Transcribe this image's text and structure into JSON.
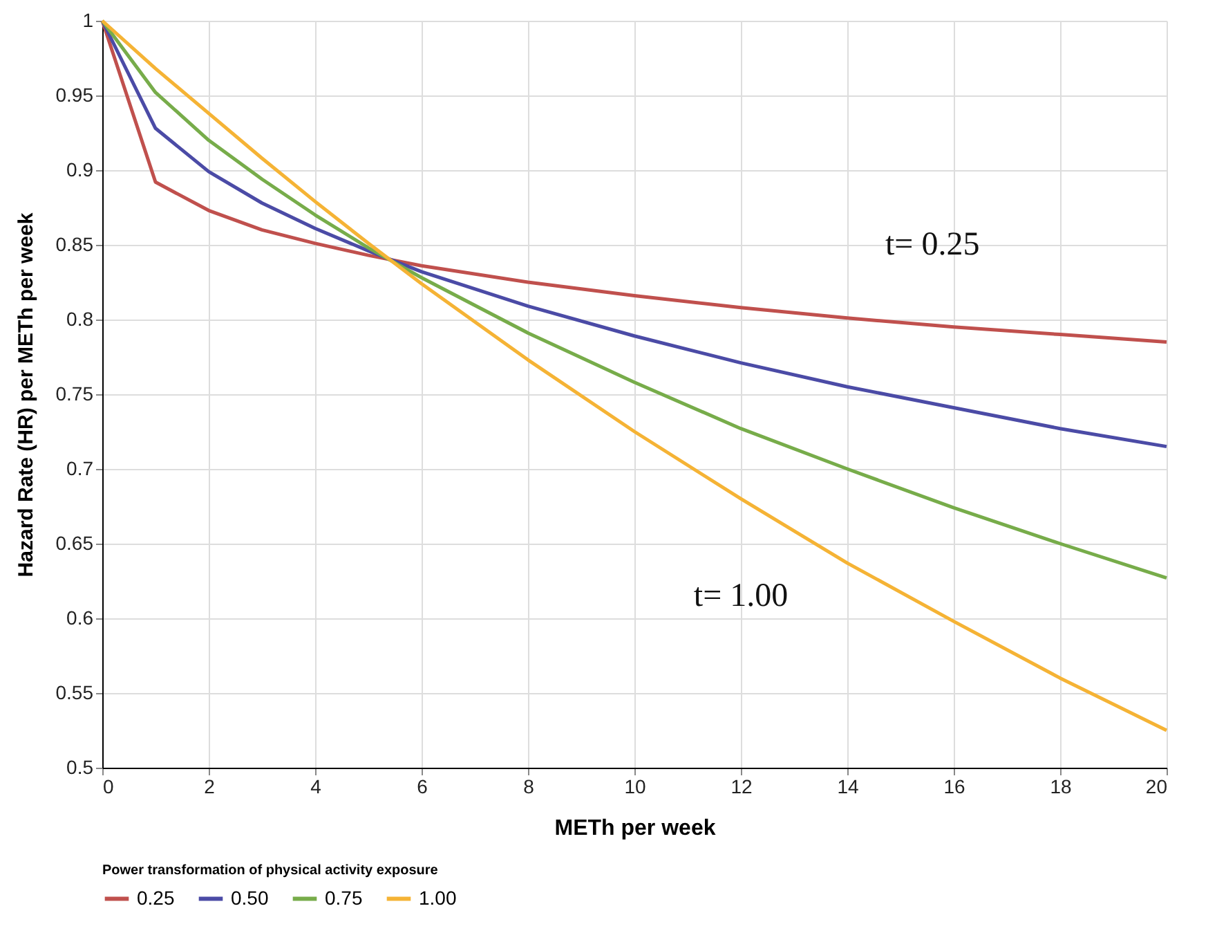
{
  "chart_data": {
    "type": "line",
    "xlabel": "METh per week",
    "ylabel": "Hazard Rate (HR) per METh per week",
    "legend_title": "Power transformation of physical activity exposure",
    "x": [
      0,
      1,
      2,
      3,
      4,
      5,
      6,
      8,
      10,
      12,
      14,
      16,
      18,
      20
    ],
    "series": [
      {
        "name": "0.25",
        "color": "#c0504d",
        "values": [
          1,
          0.892,
          0.873,
          0.86,
          0.851,
          0.843,
          0.836,
          0.825,
          0.816,
          0.808,
          0.801,
          0.795,
          0.79,
          0.785
        ]
      },
      {
        "name": "0.50",
        "color": "#4b4ba6",
        "values": [
          1,
          0.928,
          0.899,
          0.878,
          0.861,
          0.846,
          0.832,
          0.809,
          0.789,
          0.771,
          0.755,
          0.741,
          0.727,
          0.715
        ]
      },
      {
        "name": "0.75",
        "color": "#77ac4a",
        "values": [
          1,
          0.952,
          0.92,
          0.894,
          0.87,
          0.848,
          0.828,
          0.791,
          0.758,
          0.727,
          0.7,
          0.674,
          0.65,
          0.627
        ]
      },
      {
        "name": "1.00",
        "color": "#f5b335",
        "values": [
          1,
          0.968,
          0.938,
          0.908,
          0.879,
          0.851,
          0.824,
          0.773,
          0.725,
          0.68,
          0.637,
          0.598,
          0.56,
          0.525
        ]
      }
    ],
    "xlim": [
      0,
      20
    ],
    "xticks": [
      0,
      2,
      4,
      6,
      8,
      10,
      12,
      14,
      16,
      18,
      20
    ],
    "ylim": [
      0.5,
      1
    ],
    "yticks": [
      0.5,
      0.55,
      0.6,
      0.65,
      0.7,
      0.75,
      0.8,
      0.85,
      0.9,
      0.95,
      1
    ],
    "annotations": [
      "t= 0.25",
      "t= 1.00"
    ],
    "grid": true,
    "legend": "bottom",
    "marker": "none",
    "line_style": "solid"
  }
}
